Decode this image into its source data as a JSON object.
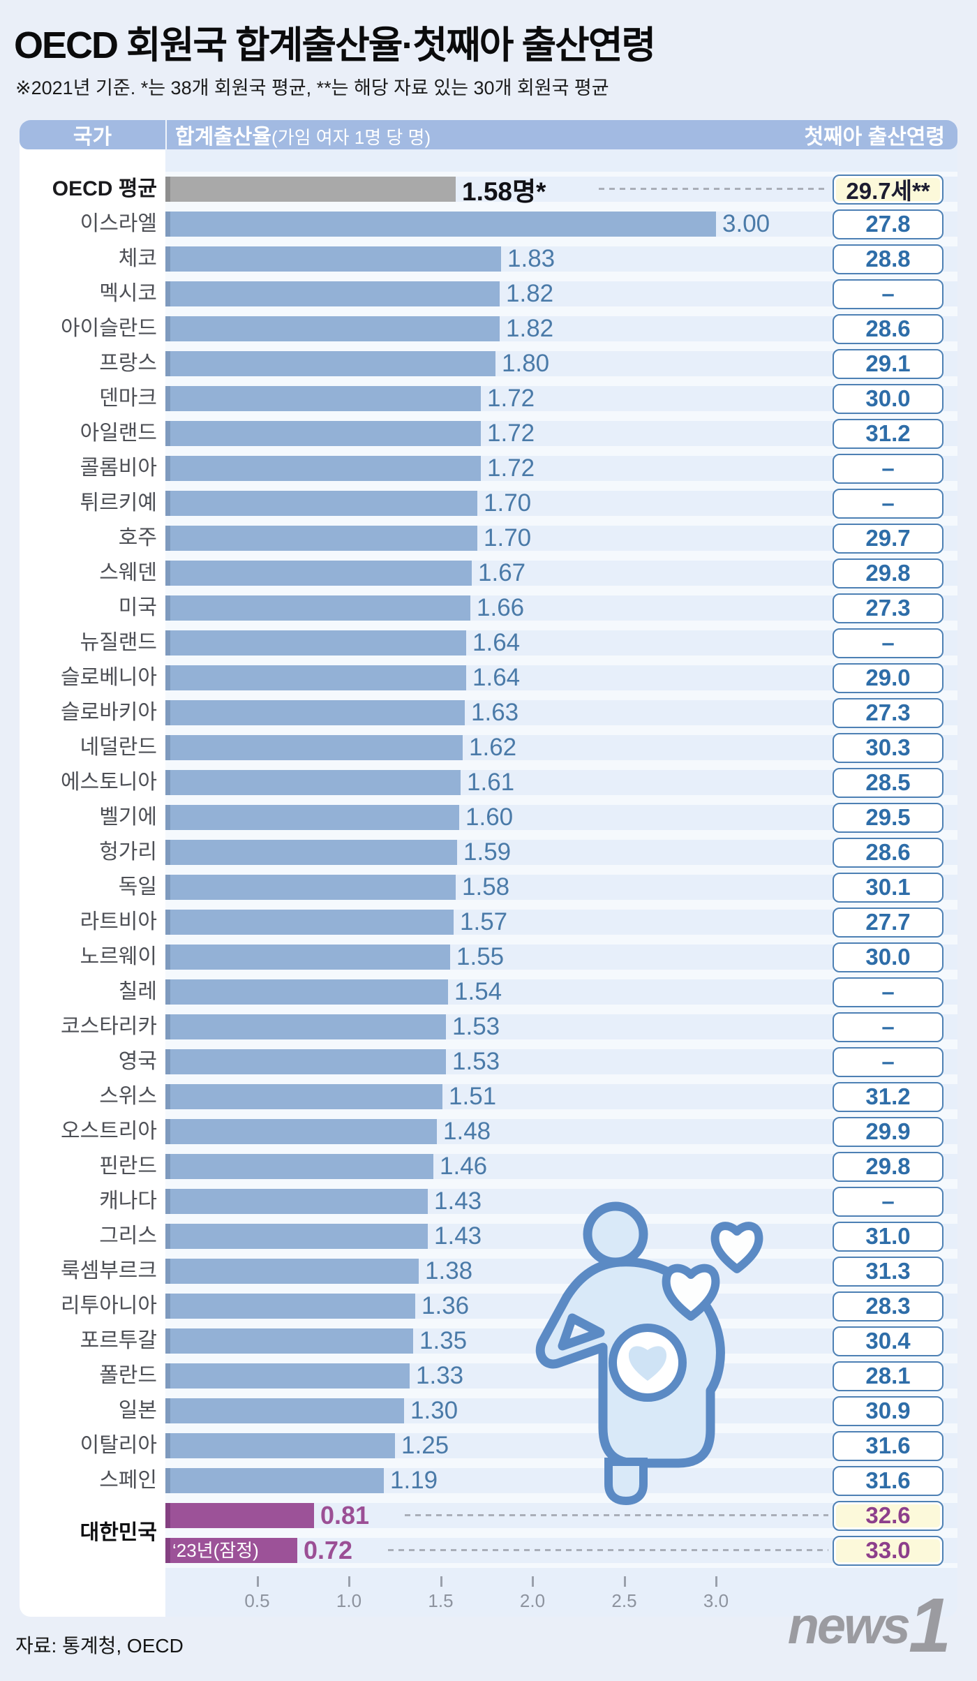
{
  "title": "OECD 회원국 합계출산율·첫째아 출산연령",
  "subtitle": "※2021년 기준.  *는 38개 회원국 평균,  **는 해당 자료 있는 30개 회원국 평균",
  "header": {
    "country": "국가",
    "fertility_bold": "합계출산율",
    "fertility_note": "(가임 여자 1명 당 명)",
    "age": "첫째아 출산연령"
  },
  "chart_data": {
    "type": "bar",
    "orientation": "horizontal",
    "title": "OECD 회원국 합계출산율·첫째아 출산연령",
    "xlabel": "합계출산율(가임 여자 1명 당 명)",
    "x_ticks": [
      0.5,
      1.0,
      1.5,
      2.0,
      2.5,
      3.0
    ],
    "xlim": [
      0,
      3.3
    ],
    "grid": false,
    "rows": [
      {
        "label": "OECD 평균",
        "value": 1.58,
        "value_label": "1.58명*",
        "age": "29.7세**",
        "type": "oecd",
        "dotted": true
      },
      {
        "label": "이스라엘",
        "value": 3.0,
        "value_label": "3.00",
        "age": "27.8"
      },
      {
        "label": "체코",
        "value": 1.83,
        "value_label": "1.83",
        "age": "28.8"
      },
      {
        "label": "멕시코",
        "value": 1.82,
        "value_label": "1.82",
        "age": "–"
      },
      {
        "label": "아이슬란드",
        "value": 1.82,
        "value_label": "1.82",
        "age": "28.6"
      },
      {
        "label": "프랑스",
        "value": 1.8,
        "value_label": "1.80",
        "age": "29.1"
      },
      {
        "label": "덴마크",
        "value": 1.72,
        "value_label": "1.72",
        "age": "30.0"
      },
      {
        "label": "아일랜드",
        "value": 1.72,
        "value_label": "1.72",
        "age": "31.2"
      },
      {
        "label": "콜롬비아",
        "value": 1.72,
        "value_label": "1.72",
        "age": "–"
      },
      {
        "label": "튀르키예",
        "value": 1.7,
        "value_label": "1.70",
        "age": "–"
      },
      {
        "label": "호주",
        "value": 1.7,
        "value_label": "1.70",
        "age": "29.7"
      },
      {
        "label": "스웨덴",
        "value": 1.67,
        "value_label": "1.67",
        "age": "29.8"
      },
      {
        "label": "미국",
        "value": 1.66,
        "value_label": "1.66",
        "age": "27.3"
      },
      {
        "label": "뉴질랜드",
        "value": 1.64,
        "value_label": "1.64",
        "age": "–"
      },
      {
        "label": "슬로베니아",
        "value": 1.64,
        "value_label": "1.64",
        "age": "29.0"
      },
      {
        "label": "슬로바키아",
        "value": 1.63,
        "value_label": "1.63",
        "age": "27.3"
      },
      {
        "label": "네덜란드",
        "value": 1.62,
        "value_label": "1.62",
        "age": "30.3"
      },
      {
        "label": "에스토니아",
        "value": 1.61,
        "value_label": "1.61",
        "age": "28.5"
      },
      {
        "label": "벨기에",
        "value": 1.6,
        "value_label": "1.60",
        "age": "29.5"
      },
      {
        "label": "헝가리",
        "value": 1.59,
        "value_label": "1.59",
        "age": "28.6"
      },
      {
        "label": "독일",
        "value": 1.58,
        "value_label": "1.58",
        "age": "30.1"
      },
      {
        "label": "라트비아",
        "value": 1.57,
        "value_label": "1.57",
        "age": "27.7"
      },
      {
        "label": "노르웨이",
        "value": 1.55,
        "value_label": "1.55",
        "age": "30.0"
      },
      {
        "label": "칠레",
        "value": 1.54,
        "value_label": "1.54",
        "age": "–"
      },
      {
        "label": "코스타리카",
        "value": 1.53,
        "value_label": "1.53",
        "age": "–"
      },
      {
        "label": "영국",
        "value": 1.53,
        "value_label": "1.53",
        "age": "–"
      },
      {
        "label": "스위스",
        "value": 1.51,
        "value_label": "1.51",
        "age": "31.2"
      },
      {
        "label": "오스트리아",
        "value": 1.48,
        "value_label": "1.48",
        "age": "29.9"
      },
      {
        "label": "핀란드",
        "value": 1.46,
        "value_label": "1.46",
        "age": "29.8"
      },
      {
        "label": "캐나다",
        "value": 1.43,
        "value_label": "1.43",
        "age": "–"
      },
      {
        "label": "그리스",
        "value": 1.43,
        "value_label": "1.43",
        "age": "31.0"
      },
      {
        "label": "룩셈부르크",
        "value": 1.38,
        "value_label": "1.38",
        "age": "31.3"
      },
      {
        "label": "리투아니아",
        "value": 1.36,
        "value_label": "1.36",
        "age": "28.3"
      },
      {
        "label": "포르투갈",
        "value": 1.35,
        "value_label": "1.35",
        "age": "30.4"
      },
      {
        "label": "폴란드",
        "value": 1.33,
        "value_label": "1.33",
        "age": "28.1"
      },
      {
        "label": "일본",
        "value": 1.3,
        "value_label": "1.30",
        "age": "30.9"
      },
      {
        "label": "이탈리아",
        "value": 1.25,
        "value_label": "1.25",
        "age": "31.6"
      },
      {
        "label": "스페인",
        "value": 1.19,
        "value_label": "1.19",
        "age": "31.6"
      },
      {
        "label": "대한민국",
        "value": 0.81,
        "value_label": "0.81",
        "age": "32.6",
        "type": "korea",
        "dotted": true
      },
      {
        "label": "",
        "bar_label": "‘23년(잠정)",
        "value": 0.72,
        "value_label": "0.72",
        "age": "33.0",
        "type": "korea23",
        "dotted": true
      }
    ],
    "legend": null,
    "notes": "OECD 평균 및 대한민국 행은 점선으로 첫째아 출산연령 박스와 연결됨"
  },
  "colors": {
    "page_bg": "#eaeff8",
    "header_bg": "#a2bae2",
    "plot_bg": "#e7effa",
    "bar_blue": "#93b1d6",
    "bar_gray": "#a9a9a9",
    "bar_purple": "#9c5298",
    "value_blue": "#4a7aa8",
    "value_purple": "#9b4f95",
    "box_border": "#4d80b4",
    "box_text_blue": "#2e6da8",
    "box_yellow_bg": "#fcf9da",
    "box_text_purple": "#8d3f8b",
    "icon_stroke": "#5b8ac4",
    "icon_fill": "#d9e9f8"
  },
  "icon": "pregnant-woman-with-hearts",
  "footer": {
    "source": "자료: 통계청, OECD",
    "logo_news": "news",
    "logo_one": "1"
  }
}
